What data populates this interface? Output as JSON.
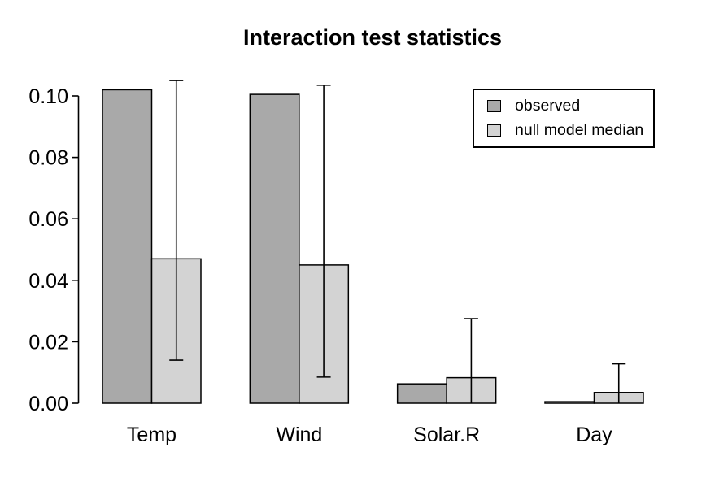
{
  "title": "Interaction test statistics",
  "legend": {
    "position": "top-right",
    "items": [
      {
        "label": "observed",
        "swatch": "dark-gray-box"
      },
      {
        "label": "null model median",
        "swatch": "light-gray-box"
      }
    ]
  },
  "chart_data": {
    "type": "bar",
    "title": "Interaction test statistics",
    "categories": [
      "Temp",
      "Wind",
      "Solar.R",
      "Day"
    ],
    "series": [
      {
        "name": "observed",
        "color": "#a9a9a9",
        "values": [
          0.102,
          0.1005,
          0.0063,
          0.0005
        ]
      },
      {
        "name": "null model median",
        "color": "#d3d3d3",
        "values": [
          0.047,
          0.045,
          0.0083,
          0.0035
        ]
      }
    ],
    "error_bars": {
      "on_series": "null model median",
      "upper": [
        0.105,
        0.1035,
        0.0275,
        0.0128
      ],
      "lower": [
        0.014,
        0.0085,
        0.0,
        0.0
      ]
    },
    "xlabel": "",
    "ylabel": "",
    "ytick_labels": [
      "0.00",
      "0.02",
      "0.04",
      "0.06",
      "0.08",
      "0.10"
    ],
    "yticks": [
      0.0,
      0.02,
      0.04,
      0.06,
      0.08,
      0.1
    ],
    "ylim": [
      0.0,
      0.105
    ],
    "grid": false,
    "bar_border_color": "#000000",
    "error_bar_color": "#000000"
  }
}
